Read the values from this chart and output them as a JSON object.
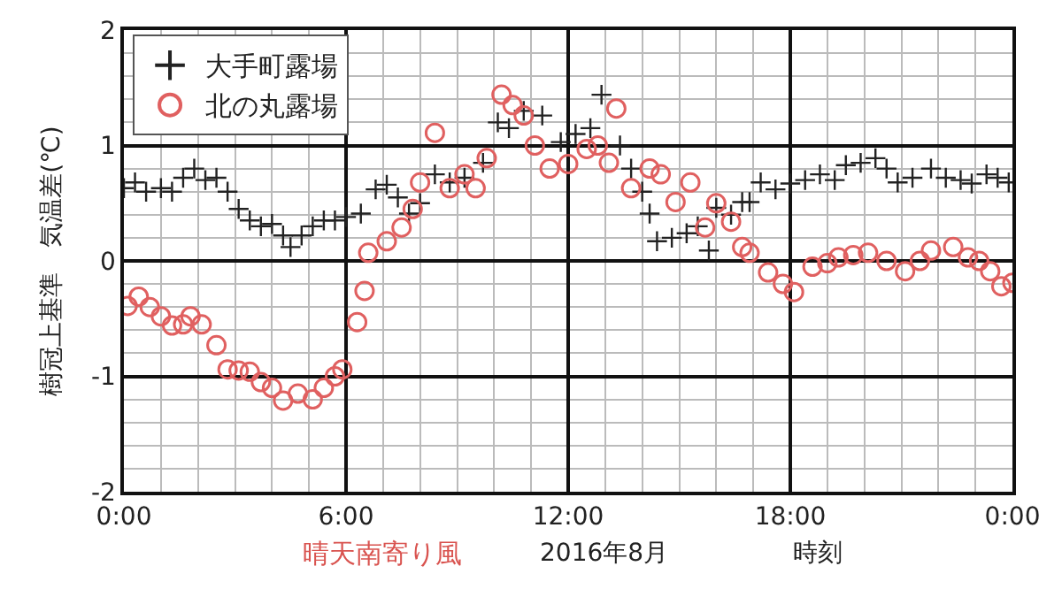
{
  "chart_data": {
    "type": "scatter",
    "xlabel": "時刻",
    "ylabel": "樹冠上基準　気温差(℃)",
    "annotations": [
      "晴天南寄り風",
      "2016年8月"
    ],
    "xlim": [
      0,
      24
    ],
    "ylim": [
      -2,
      2
    ],
    "xticks": [
      {
        "value": 0,
        "label": "0:00"
      },
      {
        "value": 6,
        "label": "6:00"
      },
      {
        "value": 12,
        "label": "12:00"
      },
      {
        "value": 18,
        "label": "18:00"
      },
      {
        "value": 24,
        "label": "0:00"
      }
    ],
    "yticks": [
      -2,
      -1,
      0,
      1,
      2
    ],
    "grid": true,
    "legend": "top left",
    "series": [
      {
        "name": "大手町露場",
        "color": "#222222",
        "marker": "cross",
        "x": [
          0,
          0.3,
          0.6,
          1.0,
          1.3,
          1.6,
          1.9,
          2.2,
          2.5,
          2.8,
          3.1,
          3.4,
          3.7,
          4.0,
          4.3,
          4.5,
          4.8,
          5.1,
          5.4,
          5.7,
          6.0,
          6.4,
          6.8,
          7.1,
          7.4,
          7.7,
          8.0,
          8.4,
          8.8,
          9.2,
          9.7,
          10.1,
          10.4,
          10.8,
          11.3,
          11.8,
          12.2,
          12.6,
          12.9,
          13.4,
          13.7,
          14.0,
          14.2,
          14.4,
          14.8,
          15.2,
          15.5,
          15.8,
          16.0,
          16.4,
          16.7,
          16.9,
          17.2,
          17.6,
          18.0,
          18.4,
          18.8,
          19.2,
          19.5,
          19.9,
          20.3,
          20.6,
          20.9,
          21.3,
          21.8,
          22.2,
          22.6,
          22.9,
          23.3,
          23.6,
          23.9
        ],
        "values": [
          0.63,
          0.68,
          0.6,
          0.63,
          0.6,
          0.72,
          0.8,
          0.7,
          0.72,
          0.6,
          0.45,
          0.35,
          0.3,
          0.32,
          0.22,
          0.12,
          0.22,
          0.3,
          0.35,
          0.35,
          0.38,
          0.41,
          0.62,
          0.66,
          0.55,
          0.41,
          0.5,
          0.75,
          0.68,
          0.72,
          0.85,
          1.2,
          1.15,
          1.3,
          1.26,
          1.03,
          1.1,
          1.15,
          1.44,
          1.0,
          0.8,
          0.6,
          0.41,
          0.17,
          0.2,
          0.24,
          0.3,
          0.09,
          0.46,
          0.4,
          0.51,
          0.51,
          0.68,
          0.62,
          0.67,
          0.7,
          0.75,
          0.7,
          0.83,
          0.85,
          0.89,
          0.8,
          0.68,
          0.72,
          0.8,
          0.72,
          0.7,
          0.67,
          0.75,
          0.72,
          0.68
        ]
      },
      {
        "name": "北の丸露場",
        "color": "#e06060",
        "marker": "circle",
        "x": [
          0.1,
          0.4,
          0.7,
          1.0,
          1.3,
          1.6,
          1.8,
          2.1,
          2.5,
          2.8,
          3.1,
          3.4,
          3.7,
          4.0,
          4.3,
          4.7,
          5.1,
          5.4,
          5.7,
          5.9,
          6.3,
          6.5,
          6.6,
          7.1,
          7.5,
          7.8,
          8.0,
          8.4,
          8.8,
          9.2,
          9.5,
          9.8,
          10.2,
          10.5,
          10.8,
          11.1,
          11.5,
          12.0,
          12.5,
          12.8,
          13.1,
          13.3,
          13.7,
          14.2,
          14.5,
          14.9,
          15.3,
          15.7,
          16.0,
          16.4,
          16.7,
          16.9,
          17.4,
          17.8,
          18.1,
          18.6,
          19.0,
          19.3,
          19.7,
          20.1,
          20.6,
          21.1,
          21.5,
          21.8,
          22.4,
          22.8,
          23.1,
          23.4,
          23.7,
          24.0
        ],
        "values": [
          -0.39,
          -0.31,
          -0.4,
          -0.48,
          -0.56,
          -0.55,
          -0.48,
          -0.55,
          -0.73,
          -0.94,
          -0.95,
          -0.96,
          -1.05,
          -1.1,
          -1.21,
          -1.15,
          -1.2,
          -1.1,
          -1.0,
          -0.94,
          -0.53,
          -0.26,
          0.07,
          0.17,
          0.29,
          0.45,
          0.68,
          1.11,
          0.63,
          0.75,
          0.63,
          0.89,
          1.44,
          1.35,
          1.26,
          1.0,
          0.8,
          0.84,
          0.97,
          1.0,
          0.85,
          1.32,
          0.63,
          0.8,
          0.75,
          0.51,
          0.68,
          0.29,
          0.5,
          0.34,
          0.12,
          0.07,
          -0.1,
          -0.2,
          -0.27,
          -0.05,
          -0.02,
          0.03,
          0.05,
          0.07,
          0.0,
          -0.09,
          0.0,
          0.09,
          0.12,
          0.03,
          0.0,
          -0.09,
          -0.22,
          -0.19
        ]
      }
    ]
  }
}
